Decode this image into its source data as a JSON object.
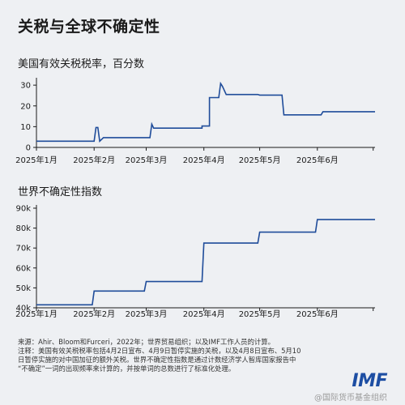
{
  "title": "关税与全球不确定性",
  "footer": {
    "source": "来源：Ahir、Bloom和Furceri，2022年；世界贸易组织；以及IMF工作人员的计算。",
    "note_1": "注释：美国有效关税税率包括4月2日宣布、4月9日暂停实施的关税，以及4月8日宣布、5月10",
    "note_2": "日暂停实施的对中国加征的额外关税。世界不确定性指数是通过计数经济学人智库国家报告中",
    "note_3": "“不确定”一词的出现频率来计算的，并按单词的总数进行了标准化处理。"
  },
  "logo": "IMF",
  "watermark": "@国际货币基金组织",
  "colors": {
    "line": "#1f4c9a",
    "axis": "#1a1a1a",
    "background": "#eef0f3",
    "logo": "#1d4ea3"
  },
  "chart_data": [
    {
      "type": "line",
      "title": "美国有效关税税率，百分数",
      "x_labels": [
        "2025年1月",
        "2025年2月",
        "2025年3月",
        "2025年4月",
        "2025年5月",
        "2025年6月"
      ],
      "yticks": [
        0,
        10,
        20,
        30
      ],
      "ytick_labels": [
        "0",
        "10",
        "20",
        "30"
      ],
      "ylim": [
        0,
        32
      ],
      "xlim": [
        "2025-01-01",
        "2025-07-02"
      ],
      "grid": false,
      "series": [
        {
          "points": [
            [
              "2025-01-01",
              3.0
            ],
            [
              "2025-02-01",
              3.0
            ],
            [
              "2025-02-02",
              9.6
            ],
            [
              "2025-02-03",
              9.6
            ],
            [
              "2025-02-04",
              3.0
            ],
            [
              "2025-02-06",
              4.7
            ],
            [
              "2025-03-03",
              4.7
            ],
            [
              "2025-03-04",
              11.2
            ],
            [
              "2025-03-05",
              9.3
            ],
            [
              "2025-03-31",
              9.3
            ],
            [
              "2025-03-31",
              10.3
            ],
            [
              "2025-04-04",
              10.3
            ],
            [
              "2025-04-04",
              24.0
            ],
            [
              "2025-04-09",
              24.0
            ],
            [
              "2025-04-10",
              30.8
            ],
            [
              "2025-04-11",
              29.4
            ],
            [
              "2025-04-13",
              25.5
            ],
            [
              "2025-04-30",
              25.5
            ],
            [
              "2025-05-01",
              25.2
            ],
            [
              "2025-05-13",
              25.2
            ],
            [
              "2025-05-14",
              15.7
            ],
            [
              "2025-06-03",
              15.7
            ],
            [
              "2025-06-04",
              17.2
            ],
            [
              "2025-07-02",
              17.2
            ]
          ]
        }
      ]
    },
    {
      "type": "line",
      "title": "世界不确定性指数",
      "x_labels": [
        "2025年1月",
        "2025年2月",
        "2025年3月",
        "2025年4月",
        "2025年5月",
        "2025年6月"
      ],
      "yticks": [
        40000,
        50000,
        60000,
        70000,
        80000,
        90000
      ],
      "ytick_labels": [
        "40k",
        "50k",
        "60k",
        "70k",
        "80k",
        "90k"
      ],
      "ylim": [
        40000,
        90000
      ],
      "xlim": [
        "2025-01-01",
        "2025-07-02"
      ],
      "grid": false,
      "series": [
        {
          "points": [
            [
              "2025-01-01",
              41500
            ],
            [
              "2025-01-31",
              41500
            ],
            [
              "2025-02-01",
              48400
            ],
            [
              "2025-02-28",
              48400
            ],
            [
              "2025-03-01",
              53200
            ],
            [
              "2025-03-31",
              53200
            ],
            [
              "2025-04-01",
              72500
            ],
            [
              "2025-04-30",
              72500
            ],
            [
              "2025-05-01",
              78000
            ],
            [
              "2025-05-31",
              78000
            ],
            [
              "2025-06-01",
              84300
            ],
            [
              "2025-07-02",
              84300
            ]
          ]
        }
      ]
    }
  ]
}
